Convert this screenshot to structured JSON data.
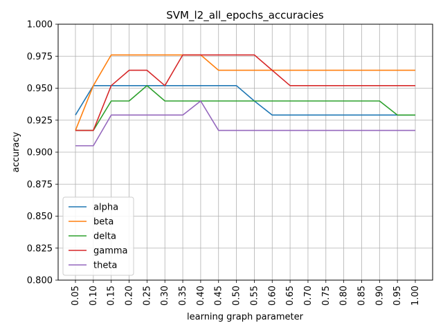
{
  "chart_data": {
    "type": "line",
    "title": "SVM_l2_all_epochs_accuracies",
    "xlabel": "learning graph parameter",
    "ylabel": "accuracy",
    "x": [
      "0.05",
      "0.10",
      "0.15",
      "0.20",
      "0.25",
      "0.30",
      "0.35",
      "0.40",
      "0.45",
      "0.50",
      "0.55",
      "0.60",
      "0.65",
      "0.70",
      "0.75",
      "0.80",
      "0.85",
      "0.90",
      "0.95",
      "1.00"
    ],
    "ylim": [
      0.8,
      1.0
    ],
    "yticks": [
      "0.800",
      "0.825",
      "0.850",
      "0.875",
      "0.900",
      "0.925",
      "0.950",
      "0.975",
      "1.000"
    ],
    "grid": true,
    "legend_position": "lower-left",
    "series": [
      {
        "name": "alpha",
        "color": "#1f77b4",
        "values": [
          0.929,
          0.952,
          0.952,
          0.952,
          0.952,
          0.952,
          0.952,
          0.952,
          0.952,
          0.952,
          0.94,
          0.929,
          0.929,
          0.929,
          0.929,
          0.929,
          0.929,
          0.929,
          0.929,
          0.929
        ]
      },
      {
        "name": "beta",
        "color": "#ff7f0e",
        "values": [
          0.917,
          0.952,
          0.976,
          0.976,
          0.976,
          0.976,
          0.976,
          0.976,
          0.964,
          0.964,
          0.964,
          0.964,
          0.964,
          0.964,
          0.964,
          0.964,
          0.964,
          0.964,
          0.964,
          0.964
        ]
      },
      {
        "name": "delta",
        "color": "#2ca02c",
        "values": [
          0.917,
          0.917,
          0.94,
          0.94,
          0.952,
          0.94,
          0.94,
          0.94,
          0.94,
          0.94,
          0.94,
          0.94,
          0.94,
          0.94,
          0.94,
          0.94,
          0.94,
          0.94,
          0.929,
          0.929
        ]
      },
      {
        "name": "gamma",
        "color": "#d62728",
        "values": [
          0.917,
          0.917,
          0.952,
          0.964,
          0.964,
          0.952,
          0.976,
          0.976,
          0.976,
          0.976,
          0.976,
          0.964,
          0.952,
          0.952,
          0.952,
          0.952,
          0.952,
          0.952,
          0.952,
          0.952
        ]
      },
      {
        "name": "theta",
        "color": "#9467bd",
        "values": [
          0.905,
          0.905,
          0.929,
          0.929,
          0.929,
          0.929,
          0.929,
          0.94,
          0.917,
          0.917,
          0.917,
          0.917,
          0.917,
          0.917,
          0.917,
          0.917,
          0.917,
          0.917,
          0.917,
          0.917
        ]
      }
    ]
  }
}
